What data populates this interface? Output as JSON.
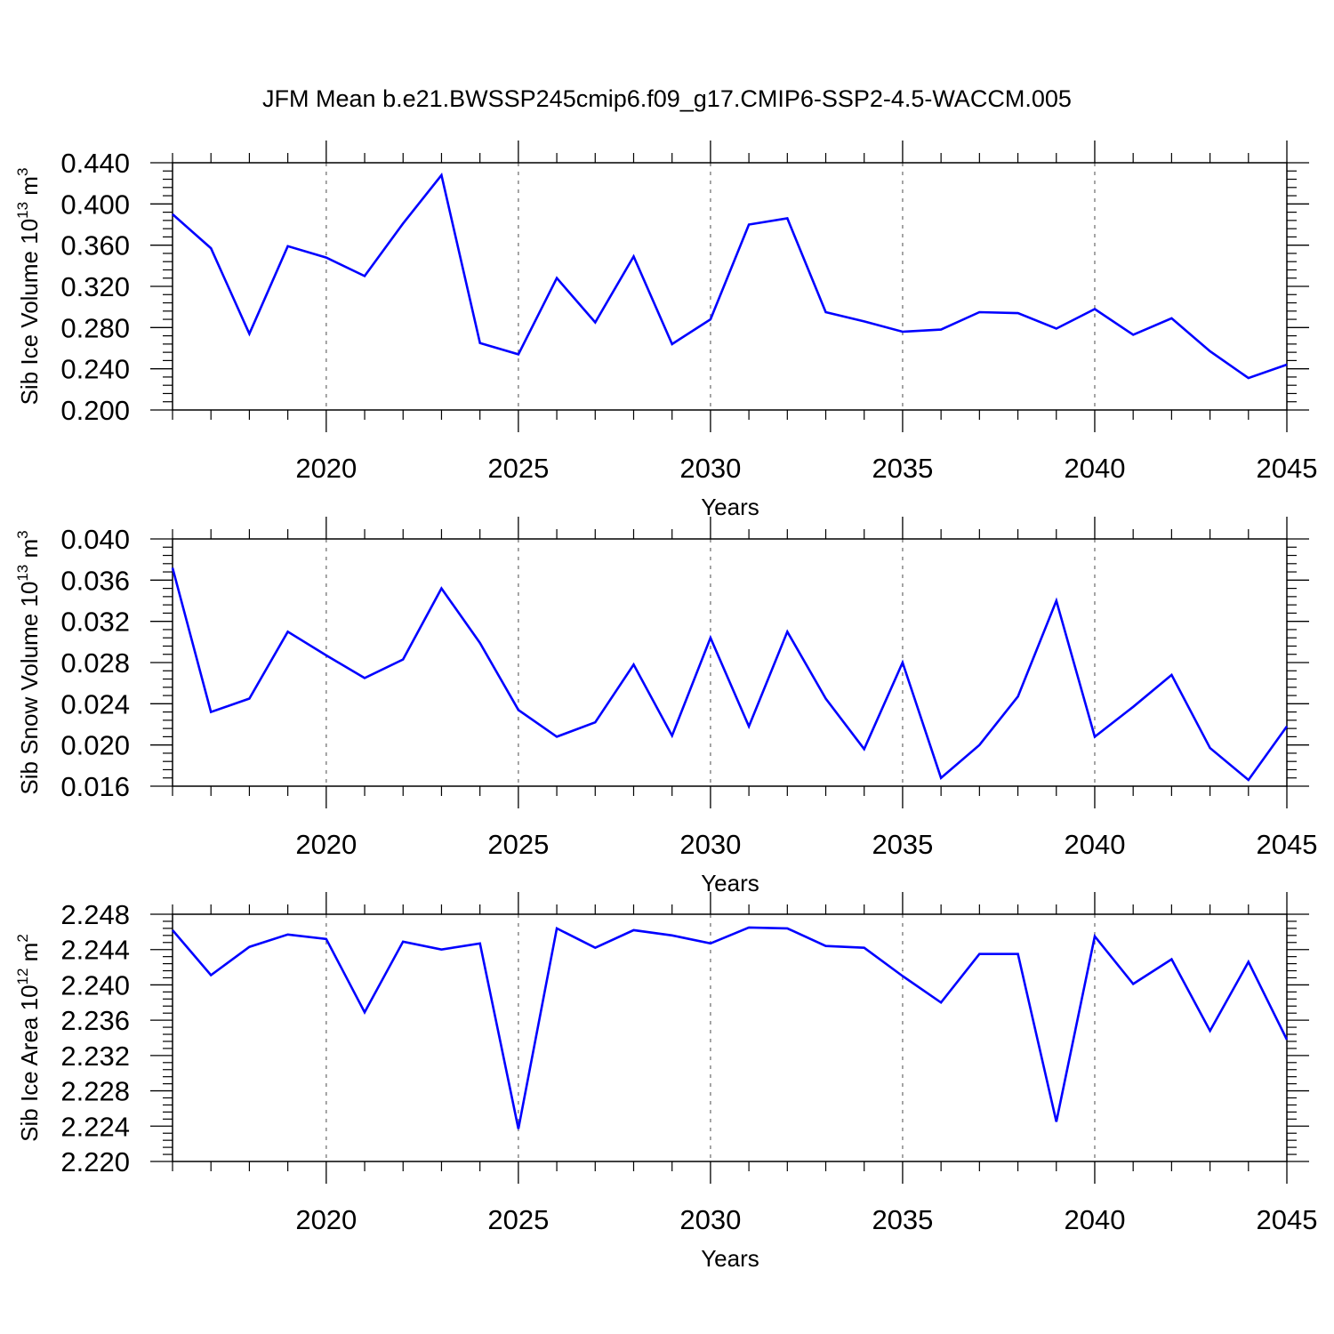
{
  "figure": {
    "title": "JFM Mean b.e21.BWSSP245cmip6.f09_g17.CMIP6-SSP2-4.5-WACCM.005"
  },
  "chart_data": [
    {
      "type": "line",
      "title": "",
      "xlabel": "Years",
      "ylabel_base": "Sib Ice Volume 10",
      "ylabel_exp": "13",
      "ylabel_unit": " m",
      "ylabel_unit_exp": "3",
      "xlim": [
        2016,
        2045
      ],
      "ylim": [
        0.2,
        0.44
      ],
      "yticks": [
        "0.200",
        "0.240",
        "0.280",
        "0.320",
        "0.360",
        "0.400",
        "0.440"
      ],
      "xticks": [
        "2020",
        "2025",
        "2030",
        "2035",
        "2040",
        "2045"
      ],
      "grid": "vertical dashed at major x ticks",
      "line_color": "#0000ff",
      "series": [
        {
          "x": [
            2016,
            2017,
            2018,
            2019,
            2020,
            2021,
            2022,
            2023,
            2024,
            2025,
            2026,
            2027,
            2028,
            2029,
            2030,
            2031,
            2032,
            2033,
            2034,
            2035,
            2036,
            2037,
            2038,
            2039,
            2040,
            2041,
            2042,
            2043,
            2044,
            2045
          ],
          "values": [
            0.39,
            0.357,
            0.274,
            0.359,
            0.348,
            0.33,
            0.381,
            0.428,
            0.265,
            0.254,
            0.328,
            0.285,
            0.349,
            0.264,
            0.288,
            0.38,
            0.386,
            0.295,
            0.286,
            0.276,
            0.278,
            0.295,
            0.294,
            0.279,
            0.298,
            0.273,
            0.289,
            0.257,
            0.231,
            0.244
          ]
        }
      ]
    },
    {
      "type": "line",
      "title": "",
      "xlabel": "Years",
      "ylabel_base": "Sib Snow Volume 10",
      "ylabel_exp": "13",
      "ylabel_unit": " m",
      "ylabel_unit_exp": "3",
      "xlim": [
        2016,
        2045
      ],
      "ylim": [
        0.016,
        0.04
      ],
      "yticks": [
        "0.016",
        "0.020",
        "0.024",
        "0.028",
        "0.032",
        "0.036",
        "0.040"
      ],
      "xticks": [
        "2020",
        "2025",
        "2030",
        "2035",
        "2040",
        "2045"
      ],
      "grid": "vertical dashed at major x ticks",
      "line_color": "#0000ff",
      "series": [
        {
          "x": [
            2016,
            2017,
            2018,
            2019,
            2020,
            2021,
            2022,
            2023,
            2024,
            2025,
            2026,
            2027,
            2028,
            2029,
            2030,
            2031,
            2032,
            2033,
            2034,
            2035,
            2036,
            2037,
            2038,
            2039,
            2040,
            2041,
            2042,
            2043,
            2044,
            2045
          ],
          "values": [
            0.0372,
            0.0232,
            0.0245,
            0.031,
            0.0287,
            0.0265,
            0.0283,
            0.0352,
            0.0299,
            0.0234,
            0.0208,
            0.0222,
            0.0278,
            0.0209,
            0.0304,
            0.0218,
            0.031,
            0.0245,
            0.0196,
            0.028,
            0.0168,
            0.02,
            0.0247,
            0.034,
            0.0208,
            0.0237,
            0.0268,
            0.0197,
            0.0166,
            0.0218
          ]
        }
      ]
    },
    {
      "type": "line",
      "title": "",
      "xlabel": "Years",
      "ylabel_base": "Sib Ice Area 10",
      "ylabel_exp": "12",
      "ylabel_unit": " m",
      "ylabel_unit_exp": "2",
      "xlim": [
        2016,
        2045
      ],
      "ylim": [
        2.22,
        2.248
      ],
      "yticks": [
        "2.220",
        "2.224",
        "2.228",
        "2.232",
        "2.236",
        "2.240",
        "2.244",
        "2.248"
      ],
      "xticks": [
        "2020",
        "2025",
        "2030",
        "2035",
        "2040",
        "2045"
      ],
      "grid": "vertical dashed at major x ticks",
      "line_color": "#0000ff",
      "series": [
        {
          "x": [
            2016,
            2017,
            2018,
            2019,
            2020,
            2021,
            2022,
            2023,
            2024,
            2025,
            2026,
            2027,
            2028,
            2029,
            2030,
            2031,
            2032,
            2033,
            2034,
            2035,
            2036,
            2037,
            2038,
            2039,
            2040,
            2041,
            2042,
            2043,
            2044,
            2045
          ],
          "values": [
            2.2462,
            2.2411,
            2.2443,
            2.2457,
            2.2452,
            2.2369,
            2.2449,
            2.244,
            2.2447,
            2.2237,
            2.2464,
            2.2442,
            2.2462,
            2.2456,
            2.2447,
            2.2465,
            2.2464,
            2.2444,
            2.2442,
            2.241,
            2.238,
            2.2435,
            2.2435,
            2.2245,
            2.2455,
            2.2401,
            2.2429,
            2.2348,
            2.2426,
            2.2338
          ]
        }
      ]
    }
  ]
}
